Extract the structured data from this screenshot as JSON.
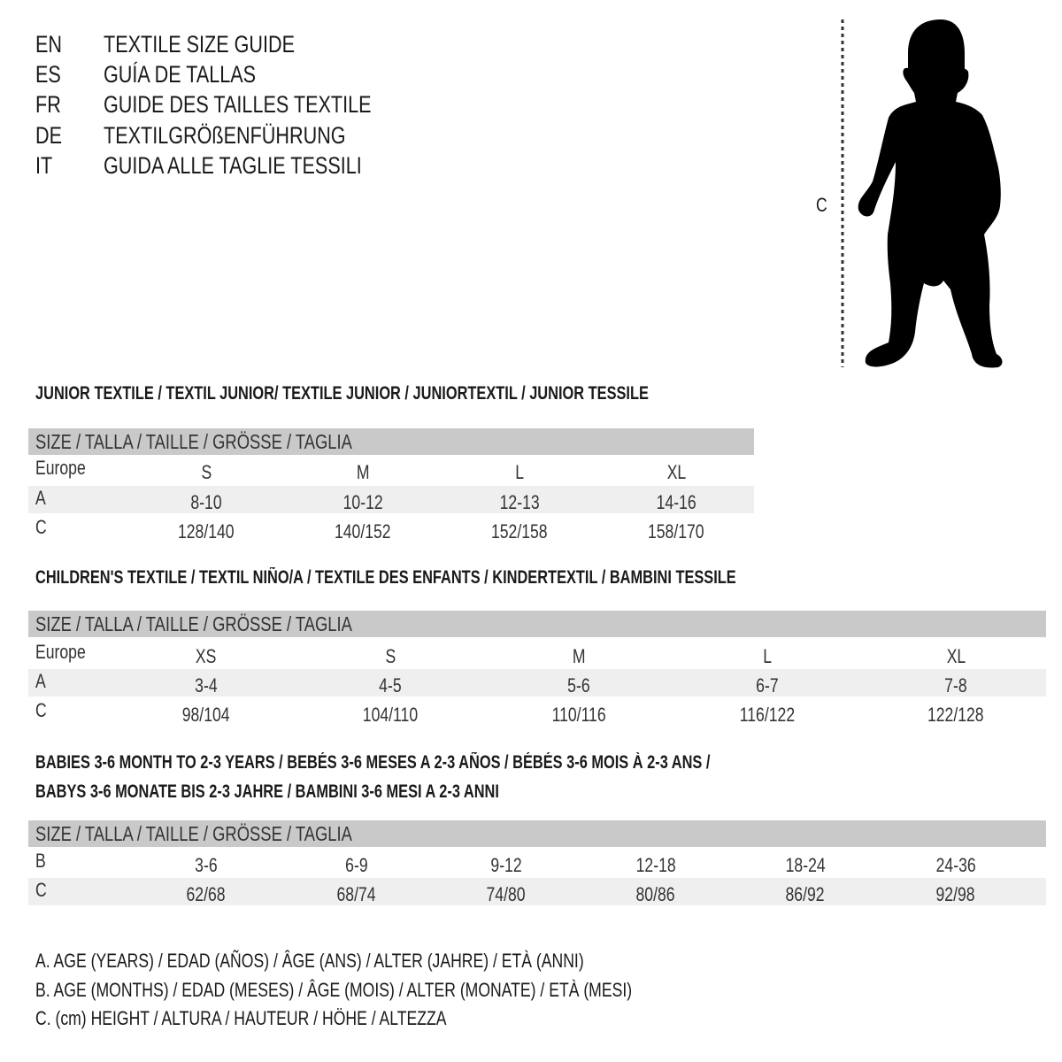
{
  "header": {
    "languages": [
      {
        "code": "EN",
        "title": "TEXTILE SIZE GUIDE"
      },
      {
        "code": "ES",
        "title": "GUÍA DE TALLAS"
      },
      {
        "code": "FR",
        "title": "GUIDE DES TAILLES TEXTILE"
      },
      {
        "code": "DE",
        "title": "TEXTILGRÖßENFÜHRUNG"
      },
      {
        "code": "IT",
        "title": "GUIDA ALLE TAGLIE TESSILI"
      }
    ]
  },
  "figure": {
    "measure_label": "C",
    "icon": "child-silhouette"
  },
  "size_header": "SIZE / TALLA / TAILLE / GRÖSSE / TAGLIA",
  "colors": {
    "header_bar": "#c9c9c9",
    "stripe": "#efefef",
    "text": "#1a1a1a"
  },
  "sections": [
    {
      "title": "JUNIOR TEXTILE / TEXTIL JUNIOR/ TEXTILE JUNIOR / JUNIORTEXTIL / JUNIOR TESSILE",
      "rows": [
        {
          "label": "Europe",
          "values": [
            "S",
            "M",
            "L",
            "XL"
          ]
        },
        {
          "label": "A",
          "values": [
            "8-10",
            "10-12",
            "12-13",
            "14-16"
          ]
        },
        {
          "label": "C",
          "values": [
            "128/140",
            "140/152",
            "152/158",
            "158/170"
          ]
        }
      ]
    },
    {
      "title": "CHILDREN'S TEXTILE / TEXTIL NIÑO/A / TEXTILE DES ENFANTS / KINDERTEXTIL / BAMBINI TESSILE",
      "rows": [
        {
          "label": "Europe",
          "values": [
            "XS",
            "S",
            "M",
            "L",
            "XL"
          ]
        },
        {
          "label": "A",
          "values": [
            "3-4",
            "4-5",
            "5-6",
            "6-7",
            "7-8"
          ]
        },
        {
          "label": "C",
          "values": [
            "98/104",
            "104/110",
            "110/116",
            "116/122",
            "122/128"
          ]
        }
      ]
    },
    {
      "title": "BABIES 3-6 MONTH TO 2-3 YEARS / BEBÉS 3-6 MESES A 2-3 AÑOS / BÉBÉS 3-6 MOIS À 2-3 ANS /",
      "title_line2": "BABYS 3-6 MONATE BIS 2-3 JAHRE / BAMBINI 3-6 MESI A 2-3 ANNI",
      "rows": [
        {
          "label": "B",
          "values": [
            "3-6",
            "6-9",
            "9-12",
            "12-18",
            "18-24",
            "24-36"
          ]
        },
        {
          "label": "C",
          "values": [
            "62/68",
            "68/74",
            "74/80",
            "80/86",
            "86/92",
            "92/98"
          ]
        }
      ]
    }
  ],
  "legend": [
    "A. AGE (YEARS) / EDAD (AÑOS) / ÂGE (ANS) / ALTER (JAHRE) / ETÀ (ANNI)",
    "B. AGE (MONTHS) / EDAD (MESES) / ÂGE (MOIS) / ALTER (MONATE) / ETÀ (MESI)",
    "C. (cm) HEIGHT / ALTURA / HAUTEUR / HÖHE / ALTEZZA"
  ]
}
